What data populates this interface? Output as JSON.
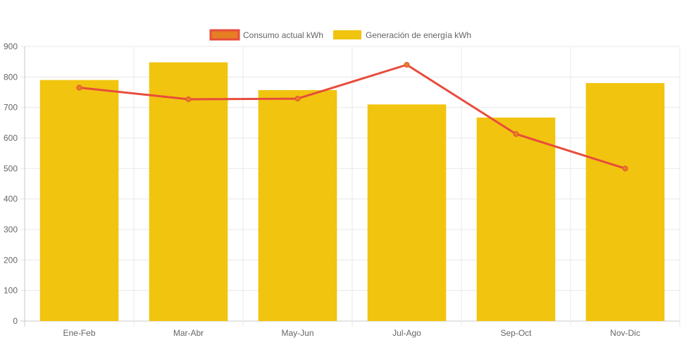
{
  "chart_data": {
    "type": "bar",
    "categories": [
      "Ene-Feb",
      "Mar-Abr",
      "May-Jun",
      "Jul-Ago",
      "Sep-Oct",
      "Nov-Dic"
    ],
    "series": [
      {
        "name": "Consumo actual kWh",
        "type": "line",
        "values": [
          765,
          727,
          729,
          840,
          613,
          500
        ],
        "color": "#e74c3c",
        "fill": "#e67e22"
      },
      {
        "name": "Generación de energía kWh",
        "type": "bar",
        "values": [
          790,
          848,
          757,
          710,
          667,
          780
        ],
        "color": "#f1c40f"
      }
    ],
    "yticks": [
      "0",
      "100",
      "200",
      "300",
      "400",
      "500",
      "600",
      "700",
      "800",
      "900"
    ],
    "ylim": [
      0,
      900
    ],
    "grid": true,
    "legend_position": "top-center"
  }
}
